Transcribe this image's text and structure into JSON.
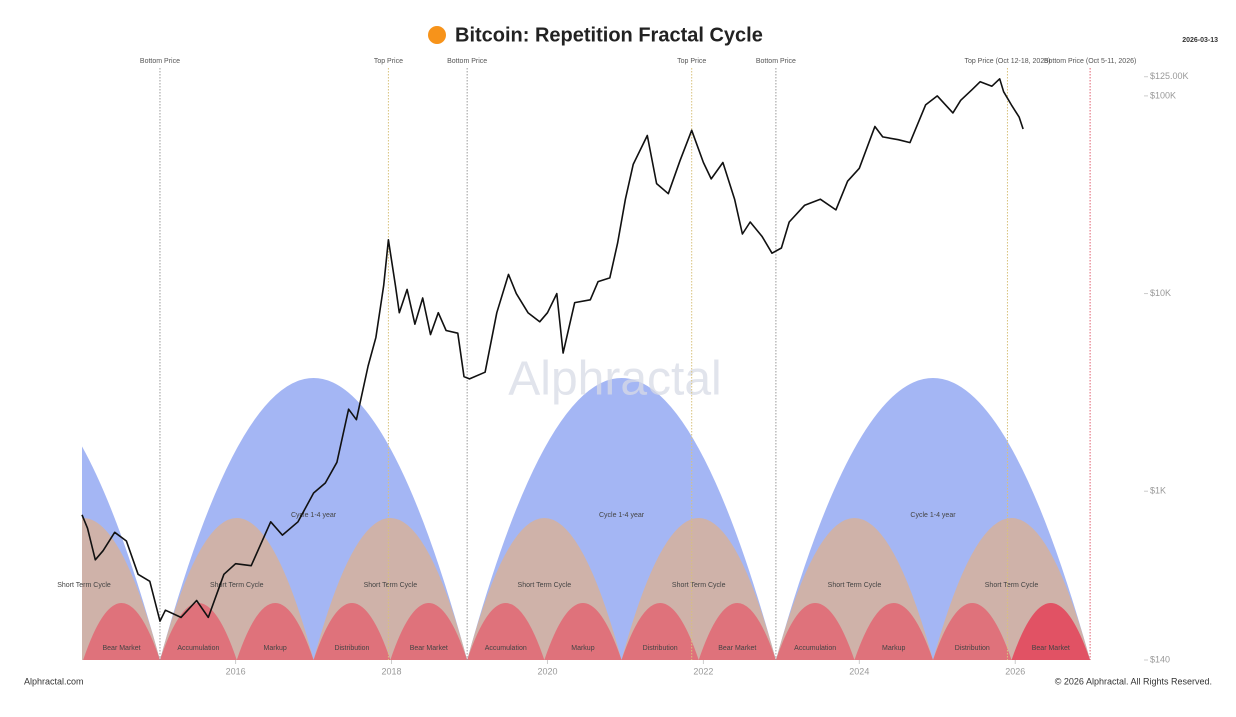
{
  "chart_data": {
    "type": "line",
    "title": "Bitcoin: Repetition Fractal Cycle",
    "date": "2026-03-13",
    "watermark": "Alphractal",
    "source": "Alphractal.com",
    "copyright": "© 2026 Alphractal. All Rights Reserved.",
    "log_scale": true,
    "xlim": [
      2014.03,
      2027.6
    ],
    "xticks": [
      2016,
      2018,
      2020,
      2022,
      2024,
      2026
    ],
    "ylim": [
      140,
      140000
    ],
    "yticks": [
      {
        "value": 140,
        "label": "$140"
      },
      {
        "value": 1000,
        "label": "$1K"
      },
      {
        "value": 10000,
        "label": "$10K"
      },
      {
        "value": 100000,
        "label": "$100K"
      },
      {
        "value": 125000,
        "label": "$125.00K"
      }
    ],
    "markers": [
      {
        "label": "Bottom Price",
        "x": 2015.03,
        "color": "#9a9a9a"
      },
      {
        "label": "Top Price",
        "x": 2017.96,
        "color": "#d8c27c"
      },
      {
        "label": "Bottom Price",
        "x": 2018.97,
        "color": "#9a9a9a"
      },
      {
        "label": "Top Price",
        "x": 2021.85,
        "color": "#d8c27c"
      },
      {
        "label": "Bottom Price",
        "x": 2022.93,
        "color": "#9a9a9a"
      },
      {
        "label": "Top Price (Oct 12-18, 2025)",
        "x": 2025.9,
        "color": "#d8c27c"
      },
      {
        "label": "Bottom Price (Oct 5-11, 2026)",
        "x": 2026.96,
        "color": "#e06070"
      }
    ],
    "cycle_labels": [
      "Cycle 1-4 year",
      "Cycle 1-4 year",
      "Cycle 1-4 year"
    ],
    "short_term_cycles": [
      "Short Term Cycle",
      "Short Term Cycle",
      "Short Term Cycle",
      "Short Term Cycle",
      "Short Term Cycle",
      "Short Term Cycle",
      "Short Term Cycle"
    ],
    "phases": [
      "Bear Market",
      "Accumulation",
      "Markup",
      "Distribution",
      "Bear Market",
      "Accumulation",
      "Markup",
      "Distribution",
      "Bear Market",
      "Accumulation",
      "Markup",
      "Distribution",
      "Bear Market"
    ],
    "series": [
      {
        "name": "BTC Price",
        "color": "#111111",
        "x": [
          2014.03,
          2014.1,
          2014.2,
          2014.3,
          2014.45,
          2014.6,
          2014.75,
          2014.9,
          2015.03,
          2015.1,
          2015.3,
          2015.5,
          2015.65,
          2015.85,
          2016.0,
          2016.2,
          2016.45,
          2016.6,
          2016.8,
          2017.0,
          2017.15,
          2017.3,
          2017.45,
          2017.55,
          2017.7,
          2017.8,
          2017.9,
          2017.96,
          2018.05,
          2018.1,
          2018.2,
          2018.3,
          2018.4,
          2018.5,
          2018.6,
          2018.7,
          2018.85,
          2018.93,
          2019.0,
          2019.2,
          2019.35,
          2019.5,
          2019.6,
          2019.75,
          2019.9,
          2020.0,
          2020.12,
          2020.2,
          2020.35,
          2020.55,
          2020.65,
          2020.8,
          2020.9,
          2021.0,
          2021.1,
          2021.28,
          2021.4,
          2021.55,
          2021.7,
          2021.85,
          2022.0,
          2022.1,
          2022.25,
          2022.4,
          2022.5,
          2022.6,
          2022.75,
          2022.88,
          2023.0,
          2023.1,
          2023.3,
          2023.5,
          2023.7,
          2023.85,
          2024.0,
          2024.2,
          2024.3,
          2024.5,
          2024.65,
          2024.85,
          2025.0,
          2025.2,
          2025.3,
          2025.45,
          2025.55,
          2025.7,
          2025.8,
          2025.85,
          2025.95,
          2026.05,
          2026.1
        ],
        "values": [
          760,
          650,
          450,
          500,
          620,
          560,
          380,
          350,
          220,
          250,
          230,
          280,
          230,
          380,
          430,
          420,
          700,
          600,
          700,
          980,
          1100,
          1400,
          2600,
          2300,
          4300,
          6000,
          11000,
          18700,
          11000,
          8000,
          10500,
          7000,
          9500,
          6200,
          8000,
          6500,
          6300,
          3800,
          3700,
          4000,
          8000,
          12500,
          10000,
          8000,
          7200,
          8000,
          10000,
          5000,
          9000,
          9300,
          11500,
          12000,
          18000,
          30000,
          45000,
          63000,
          36000,
          32000,
          47000,
          67000,
          46000,
          38000,
          46000,
          30000,
          20000,
          23000,
          19500,
          16000,
          17000,
          23000,
          28000,
          30000,
          26500,
          37000,
          43000,
          70000,
          62000,
          60000,
          58000,
          90000,
          100000,
          82000,
          95000,
          108000,
          118000,
          112000,
          122000,
          105000,
          90000,
          78000,
          68000
        ]
      }
    ]
  }
}
